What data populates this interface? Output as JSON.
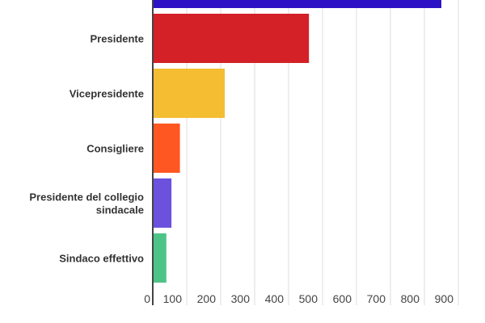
{
  "chart_data": {
    "type": "bar",
    "orientation": "horizontal",
    "categories": [
      "",
      "Presidente",
      "Vicepresidente",
      "Consigliere",
      "Presidente del collegio sindacale",
      "Sindaco effettivo"
    ],
    "category_lines": [
      [
        ""
      ],
      [
        "Presidente"
      ],
      [
        "Vicepresidente"
      ],
      [
        "Consigliere"
      ],
      [
        "Presidente del collegio",
        "sindacale"
      ],
      [
        "Sindaco effettivo"
      ]
    ],
    "values": [
      850,
      460,
      212,
      80,
      55,
      40
    ],
    "colors": [
      "#2c12c4",
      "#d42027",
      "#f4bd32",
      "#ff5722",
      "#6b51dd",
      "#4dc486"
    ],
    "xlim": [
      0,
      900
    ],
    "xticks": [
      "0",
      "100",
      "200",
      "300",
      "400",
      "500",
      "600",
      "700",
      "800",
      "900"
    ],
    "grid": true,
    "title": "",
    "xlabel": "",
    "ylabel": ""
  }
}
